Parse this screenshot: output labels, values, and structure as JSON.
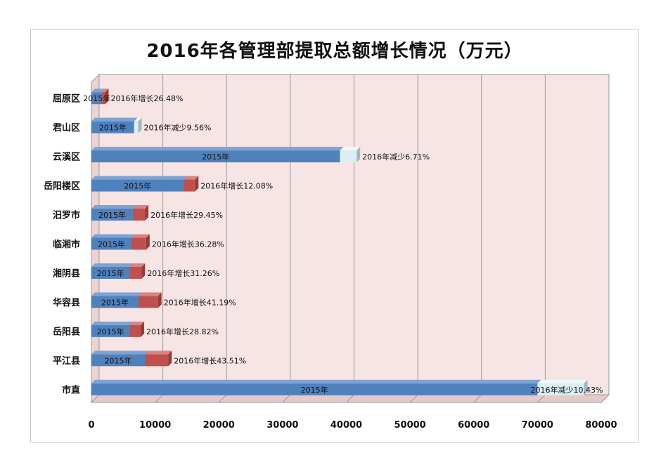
{
  "chart_data": {
    "type": "bar",
    "orientation": "horizontal",
    "stacked": true,
    "title": "2016年各管理部提取总额增长情况（万元）",
    "xlabel": "",
    "ylabel": "",
    "xlim": [
      0,
      80000
    ],
    "xticks": [
      "0",
      "10000",
      "20000",
      "30000",
      "40000",
      "50000",
      "60000",
      "70000",
      "80000"
    ],
    "grid": true,
    "categories": [
      "屈原区",
      "君山区",
      "云溪区",
      "岳阳楼区",
      "汨罗市",
      "临湘市",
      "湘阴县",
      "华容县",
      "岳阳县",
      "平江县",
      "市直"
    ],
    "base_label": "2015年",
    "values_2015": [
      1700,
      6700,
      39000,
      14500,
      6500,
      6300,
      6000,
      7400,
      6000,
      8400,
      70000
    ],
    "values_change": [
      450,
      -640,
      -2620,
      1750,
      1900,
      2290,
      1870,
      3050,
      1730,
      3650,
      -7300
    ],
    "change_labels": [
      "2016年增长26.48%",
      "2016年减少9.56%",
      "2016年减少6.71%",
      "2016年增长12.08%",
      "2016年增长29.45%",
      "2016年增长36.28%",
      "2016年增长31.26%",
      "2016年增长41.19%",
      "2016年增长28.82%",
      "2016年增长43.51%",
      "2016年减少10.43%"
    ],
    "colors": {
      "base": "#4f81bd",
      "increase": "#c0504d",
      "decrease": "#dbeef4",
      "plot_bg": "#f7e4e4"
    }
  }
}
